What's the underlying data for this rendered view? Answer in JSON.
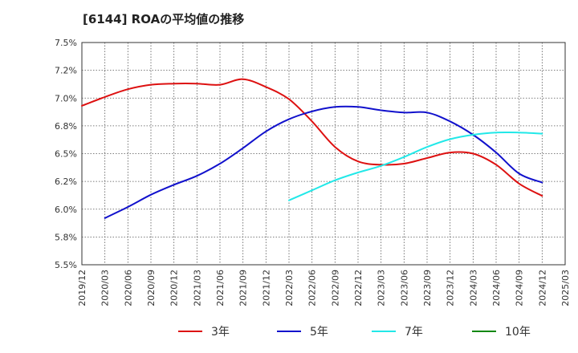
{
  "chart_data": {
    "type": "line",
    "title": "[6144]  ROAの平均値の推移",
    "xlabel": "",
    "ylabel": "",
    "ylim": [
      5.5,
      7.5
    ],
    "y_tick_labels": [
      "7.5%",
      "7.2%",
      "7.0%",
      "6.8%",
      "6.5%",
      "6.2%",
      "6.0%",
      "5.8%",
      "5.5%"
    ],
    "x_tick_labels": [
      "2019/12",
      "2020/03",
      "2020/06",
      "2020/09",
      "2020/12",
      "2021/03",
      "2021/06",
      "2021/09",
      "2021/12",
      "2022/03",
      "2022/06",
      "2022/09",
      "2022/12",
      "2023/03",
      "2023/06",
      "2023/09",
      "2023/12",
      "2024/03",
      "2024/06",
      "2024/09",
      "2024/12",
      "2025/03"
    ],
    "grid": true,
    "legend_position": "bottom",
    "series": [
      {
        "name": "3年",
        "color": "#dd1111",
        "points": [
          [
            "2019/12",
            6.93
          ],
          [
            "2020/03",
            7.01
          ],
          [
            "2020/06",
            7.08
          ],
          [
            "2020/09",
            7.12
          ],
          [
            "2020/12",
            7.13
          ],
          [
            "2021/03",
            7.13
          ],
          [
            "2021/06",
            7.12
          ],
          [
            "2021/09",
            7.17
          ],
          [
            "2021/12",
            7.1
          ],
          [
            "2022/03",
            6.99
          ],
          [
            "2022/06",
            6.79
          ],
          [
            "2022/09",
            6.56
          ],
          [
            "2022/12",
            6.43
          ],
          [
            "2023/03",
            6.4
          ],
          [
            "2023/06",
            6.41
          ],
          [
            "2023/09",
            6.46
          ],
          [
            "2023/12",
            6.51
          ],
          [
            "2024/03",
            6.5
          ],
          [
            "2024/06",
            6.4
          ],
          [
            "2024/09",
            6.23
          ],
          [
            "2024/12",
            6.12
          ]
        ]
      },
      {
        "name": "5年",
        "color": "#1111cc",
        "points": [
          [
            "2020/03",
            5.92
          ],
          [
            "2020/06",
            6.02
          ],
          [
            "2020/09",
            6.13
          ],
          [
            "2020/12",
            6.22
          ],
          [
            "2021/03",
            6.3
          ],
          [
            "2021/06",
            6.41
          ],
          [
            "2021/09",
            6.55
          ],
          [
            "2021/12",
            6.7
          ],
          [
            "2022/03",
            6.81
          ],
          [
            "2022/06",
            6.88
          ],
          [
            "2022/09",
            6.92
          ],
          [
            "2022/12",
            6.92
          ],
          [
            "2023/03",
            6.89
          ],
          [
            "2023/06",
            6.87
          ],
          [
            "2023/09",
            6.87
          ],
          [
            "2023/12",
            6.79
          ],
          [
            "2024/03",
            6.67
          ],
          [
            "2024/06",
            6.51
          ],
          [
            "2024/09",
            6.32
          ],
          [
            "2024/12",
            6.24
          ]
        ]
      },
      {
        "name": "7年",
        "color": "#22e8e8",
        "points": [
          [
            "2022/03",
            6.08
          ],
          [
            "2022/06",
            6.17
          ],
          [
            "2022/09",
            6.26
          ],
          [
            "2022/12",
            6.33
          ],
          [
            "2023/03",
            6.39
          ],
          [
            "2023/06",
            6.47
          ],
          [
            "2023/09",
            6.56
          ],
          [
            "2023/12",
            6.63
          ],
          [
            "2024/03",
            6.67
          ],
          [
            "2024/06",
            6.69
          ],
          [
            "2024/09",
            6.69
          ],
          [
            "2024/12",
            6.68
          ]
        ]
      },
      {
        "name": "10年",
        "color": "#118811",
        "points": []
      }
    ]
  }
}
